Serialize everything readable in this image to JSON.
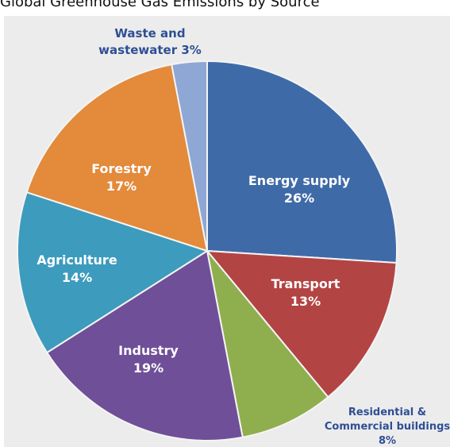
{
  "chart_data": {
    "type": "pie",
    "title": "Global Greenhouse Gas Emissions by Source",
    "slices": [
      {
        "label": "Energy supply",
        "label_lines": [
          "Energy supply"
        ],
        "value": 26,
        "value_text": "26%",
        "color": "#3f6aa8",
        "label_color": "#ffffff"
      },
      {
        "label": "Transport",
        "label_lines": [
          "Transport"
        ],
        "value": 13,
        "value_text": "13%",
        "color": "#b34444",
        "label_color": "#ffffff"
      },
      {
        "label": "Residential & Commercial buildings",
        "label_lines": [
          "Residential &",
          "Commercial buildings"
        ],
        "value": 8,
        "value_text": "8%",
        "color": "#8fae4d",
        "label_color": "#2e4f94"
      },
      {
        "label": "Industry",
        "label_lines": [
          "Industry"
        ],
        "value": 19,
        "value_text": "19%",
        "color": "#6f4f98",
        "label_color": "#ffffff"
      },
      {
        "label": "Agriculture",
        "label_lines": [
          "Agriculture"
        ],
        "value": 14,
        "value_text": "14%",
        "color": "#3d9bbd",
        "label_color": "#ffffff"
      },
      {
        "label": "Forestry",
        "label_lines": [
          "Forestry"
        ],
        "value": 17,
        "value_text": "17%",
        "color": "#e38a3b",
        "label_color": "#ffffff"
      },
      {
        "label": "Waste and wastewater",
        "label_lines": [
          "Waste and",
          "wastewater 3%"
        ],
        "value": 3,
        "value_text": "",
        "color": "#8ea7d4",
        "label_color": "#2e4f94"
      }
    ]
  }
}
